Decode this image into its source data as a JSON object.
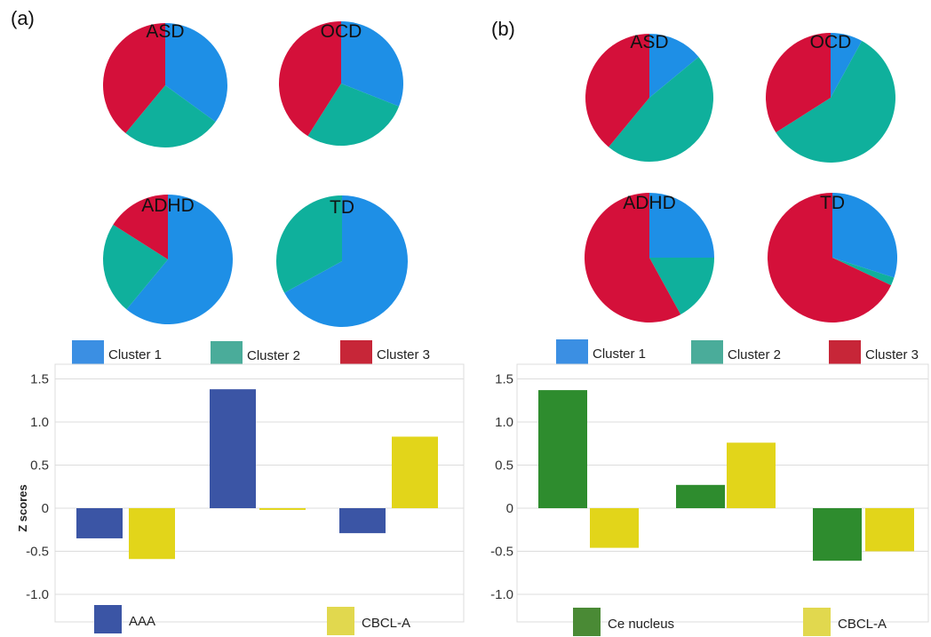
{
  "panels": [
    {
      "label": "(a)",
      "pies": [
        {
          "title": "ASD",
          "slices": [
            0.35,
            0.26,
            0.39
          ]
        },
        {
          "title": "OCD",
          "slices": [
            0.31,
            0.28,
            0.41
          ]
        },
        {
          "title": "ADHD",
          "slices": [
            0.61,
            0.23,
            0.16
          ]
        },
        {
          "title": "TD",
          "slices": [
            0.67,
            0.33,
            0.0
          ]
        }
      ],
      "cluster_legend": [
        "Cluster 1",
        "Cluster 2",
        "Cluster 3"
      ],
      "bar_legend": [
        "AAA",
        "CBCL-A"
      ],
      "ylabel": "Z scores"
    },
    {
      "label": "(b)",
      "pies": [
        {
          "title": "ASD",
          "slices": [
            0.14,
            0.47,
            0.39
          ]
        },
        {
          "title": "OCD",
          "slices": [
            0.08,
            0.58,
            0.34
          ]
        },
        {
          "title": "ADHD",
          "slices": [
            0.25,
            0.17,
            0.58
          ]
        },
        {
          "title": "TD",
          "slices": [
            0.3,
            0.02,
            0.68
          ]
        }
      ],
      "cluster_legend": [
        "Cluster 1",
        "Cluster 2",
        "Cluster 3"
      ],
      "bar_legend": [
        "Ce nucleus",
        "CBCL-A"
      ],
      "ylabel": ""
    }
  ],
  "colors": {
    "cluster1": "#1e8fe6",
    "cluster2": "#0fb09c",
    "cluster3": "#d4103a",
    "cluster1_legend": "#3b8fe3",
    "cluster2_legend": "#4aac9a",
    "cluster3_legend": "#c72638",
    "aaa": "#3b55a5",
    "cbcl": "#e2d51a",
    "ce_nucleus": "#2e8c2e",
    "ce_legend": "#4a8a35",
    "cbcl_legend": "#e1d84e",
    "grid": "#dcdcdc"
  },
  "chart_data": [
    {
      "type": "bar",
      "categories": [
        "Cluster 1",
        "Cluster 2",
        "Cluster 3"
      ],
      "series": [
        {
          "name": "AAA",
          "values": [
            -0.35,
            1.38,
            -0.29
          ]
        },
        {
          "name": "CBCL-A",
          "values": [
            -0.59,
            -0.02,
            0.83
          ]
        }
      ],
      "title": "",
      "xlabel": "",
      "ylabel": "Z scores",
      "ylim": [
        -1.0,
        1.5
      ],
      "yticks": [
        "1.5",
        "1.0",
        "0.5",
        "0",
        "-0.5",
        "-1.0"
      ],
      "grid": true,
      "legend": "bottom"
    },
    {
      "type": "bar",
      "categories": [
        "Cluster 1",
        "Cluster 2",
        "Cluster 3"
      ],
      "series": [
        {
          "name": "Ce nucleus",
          "values": [
            1.37,
            0.27,
            -0.61
          ]
        },
        {
          "name": "CBCL-A",
          "values": [
            -0.46,
            0.76,
            -0.5
          ]
        }
      ],
      "title": "",
      "xlabel": "",
      "ylabel": "",
      "ylim": [
        -1.0,
        1.5
      ],
      "yticks": [
        "1.5",
        "1.0",
        "0.5",
        "0",
        "-0.5",
        "-1.0"
      ],
      "grid": true,
      "legend": "bottom"
    }
  ]
}
